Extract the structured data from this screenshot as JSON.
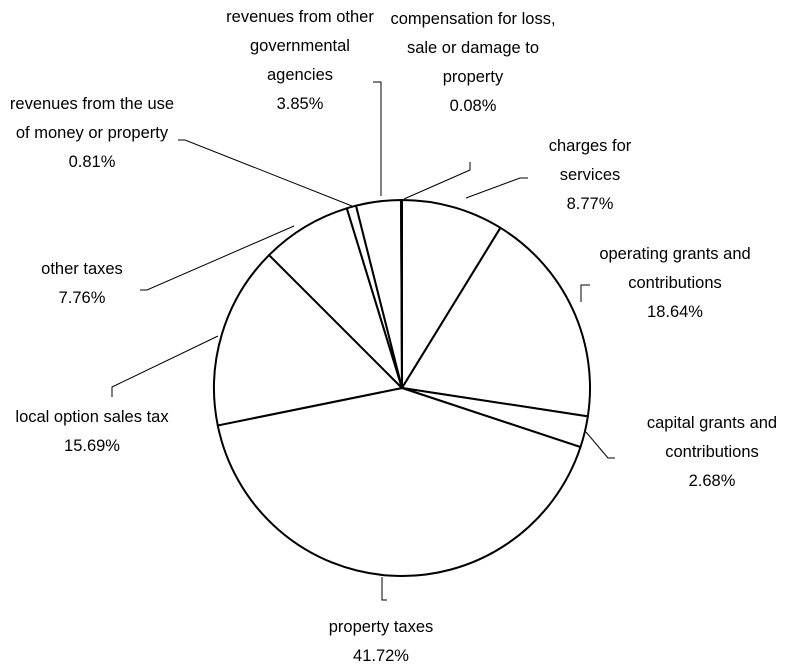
{
  "chart_data": {
    "type": "pie",
    "categories": [
      "charges for services",
      "operating grants and contributions",
      "capital grants and contributions",
      "property taxes",
      "local option sales tax",
      "other taxes",
      "revenues from the use of money or property",
      "revenues from other governmental agencies",
      "compensation for loss, sale or damage to property"
    ],
    "values": [
      8.77,
      18.64,
      2.68,
      41.72,
      15.69,
      7.76,
      0.81,
      3.85,
      0.08
    ],
    "value_labels": [
      "8.77%",
      "18.64%",
      "2.68%",
      "41.72%",
      "15.69%",
      "7.76%",
      "0.81%",
      "3.85%",
      "0.08%"
    ],
    "color": "#ffffff",
    "edge_color": "#000000"
  }
}
